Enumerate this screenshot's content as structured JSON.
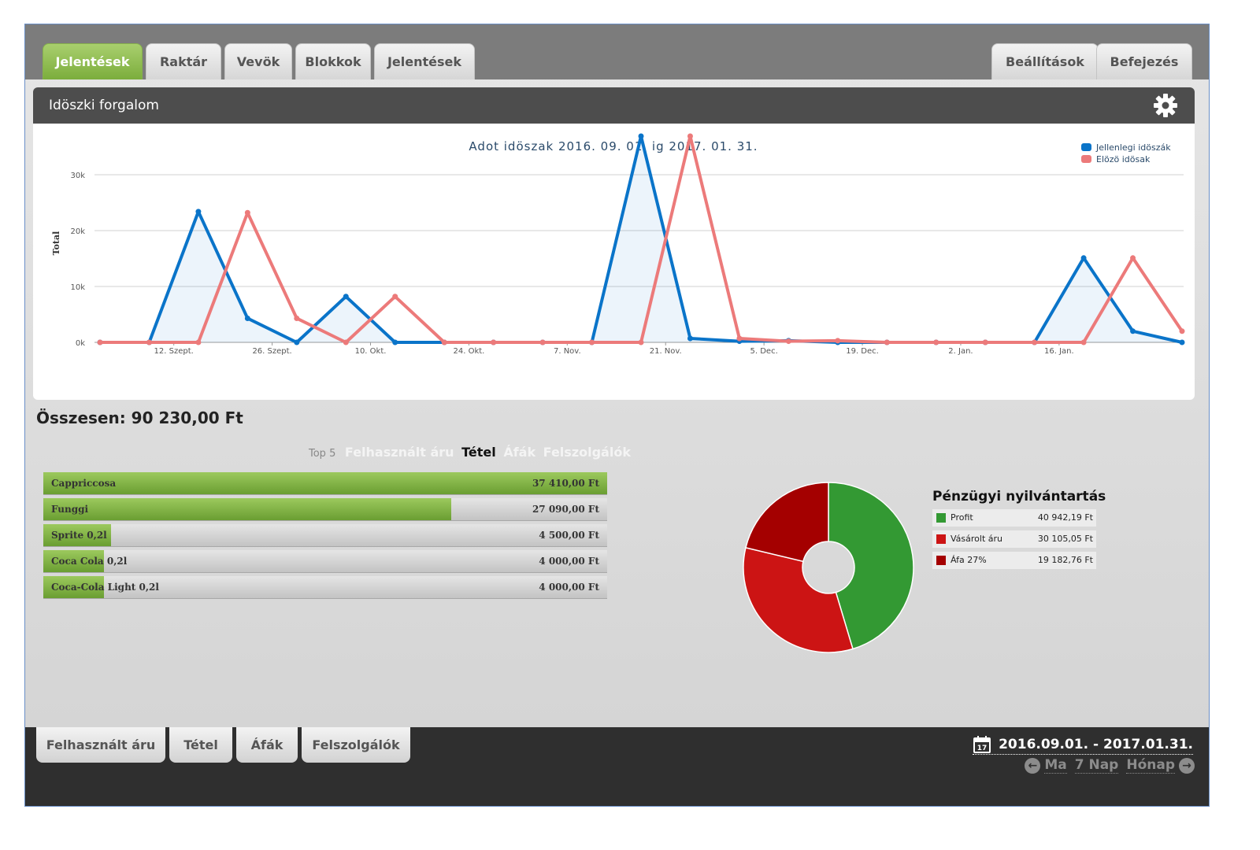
{
  "top_tabs": [
    "Jelentések",
    "Raktár",
    "Vevök",
    "Blokkok",
    "Jelentések"
  ],
  "right_tabs": [
    "Beállítások",
    "Befejezés"
  ],
  "panel": {
    "title": "Idöszki forgalom"
  },
  "chart_data": {
    "type": "line",
    "title": "Adot idöszak 2016. 09. 01. ig 2017. 01. 31.",
    "ylabel": "Total",
    "xlabel": "",
    "ylim": [
      0,
      35000
    ],
    "yticks": [
      "0k",
      "10k",
      "20k",
      "30k"
    ],
    "x_tick_labels": [
      "12. Szept.",
      "26. Szept.",
      "10. Okt.",
      "24. Okt.",
      "7. Nov.",
      "21. Nov.",
      "5. Dec.",
      "19. Dec.",
      "2. Jan.",
      "16. Jan."
    ],
    "x": [
      0,
      1,
      2,
      3,
      4,
      5,
      6,
      7,
      8,
      9,
      10,
      11,
      12,
      13,
      14,
      15,
      16,
      17,
      18,
      19,
      20,
      21,
      22
    ],
    "legend_position": "top-right",
    "grid": true,
    "series": [
      {
        "name": "Jellenlegi idöszák",
        "color": "#0a74c9",
        "filled": true,
        "values": [
          0,
          0,
          23400,
          4300,
          0,
          8200,
          0,
          0,
          0,
          0,
          0,
          36900,
          700,
          200,
          300,
          0,
          0,
          0,
          0,
          0,
          15100,
          2000,
          0
        ]
      },
      {
        "name": "Elözö idösak",
        "color": "#ec7a7a",
        "filled": false,
        "values": [
          0,
          0,
          0,
          23200,
          4300,
          0,
          8200,
          0,
          0,
          0,
          0,
          0,
          36900,
          700,
          200,
          300,
          0,
          0,
          0,
          0,
          0,
          15100,
          2000
        ]
      }
    ]
  },
  "total_label": "Összesen: 90 230,00 Ft",
  "top5": {
    "label": "Top 5",
    "tabs": [
      "Felhasznált áru",
      "Tétel",
      "Áfák",
      "Felszolgálók"
    ],
    "active": "Tétel",
    "items": [
      {
        "name": "Cappriccosa",
        "value": "37 410,00 Ft",
        "amount": 37410
      },
      {
        "name": "Funggi",
        "value": "27 090,00 Ft",
        "amount": 27090
      },
      {
        "name": "Sprite 0,2l",
        "value": "4 500,00 Ft",
        "amount": 4500
      },
      {
        "name": "Coca Cola 0,2l",
        "value": "4 000,00 Ft",
        "amount": 4000
      },
      {
        "name": "Coca-Cola Light 0,2l",
        "value": "4 000,00 Ft",
        "amount": 4000
      }
    ]
  },
  "finance": {
    "title": "Pénzügyi nyilvántartás",
    "rows": [
      {
        "name": "Profit",
        "value": "40 942,19 Ft",
        "amount": 40942.19,
        "color": "#339933"
      },
      {
        "name": "Vásárolt áru",
        "value": "30 105,05 Ft",
        "amount": 30105.05,
        "color": "#cc1414"
      },
      {
        "name": "Áfa 27%",
        "value": "19 182,76 Ft",
        "amount": 19182.76,
        "color": "#a40000"
      }
    ]
  },
  "bottom_tabs": [
    "Felhasznált áru",
    "Tétel",
    "Áfák",
    "Felszolgálók"
  ],
  "date_range": "2016.09.01. - 2017.01.31.",
  "calendar_day": "17",
  "quick_nav": [
    "Ma",
    "7 Nap",
    "Hónap"
  ],
  "icons": {
    "settings": "gear-icon",
    "calendar": "calendar-icon",
    "prev": "arrow-left-icon",
    "next": "arrow-right-icon"
  }
}
